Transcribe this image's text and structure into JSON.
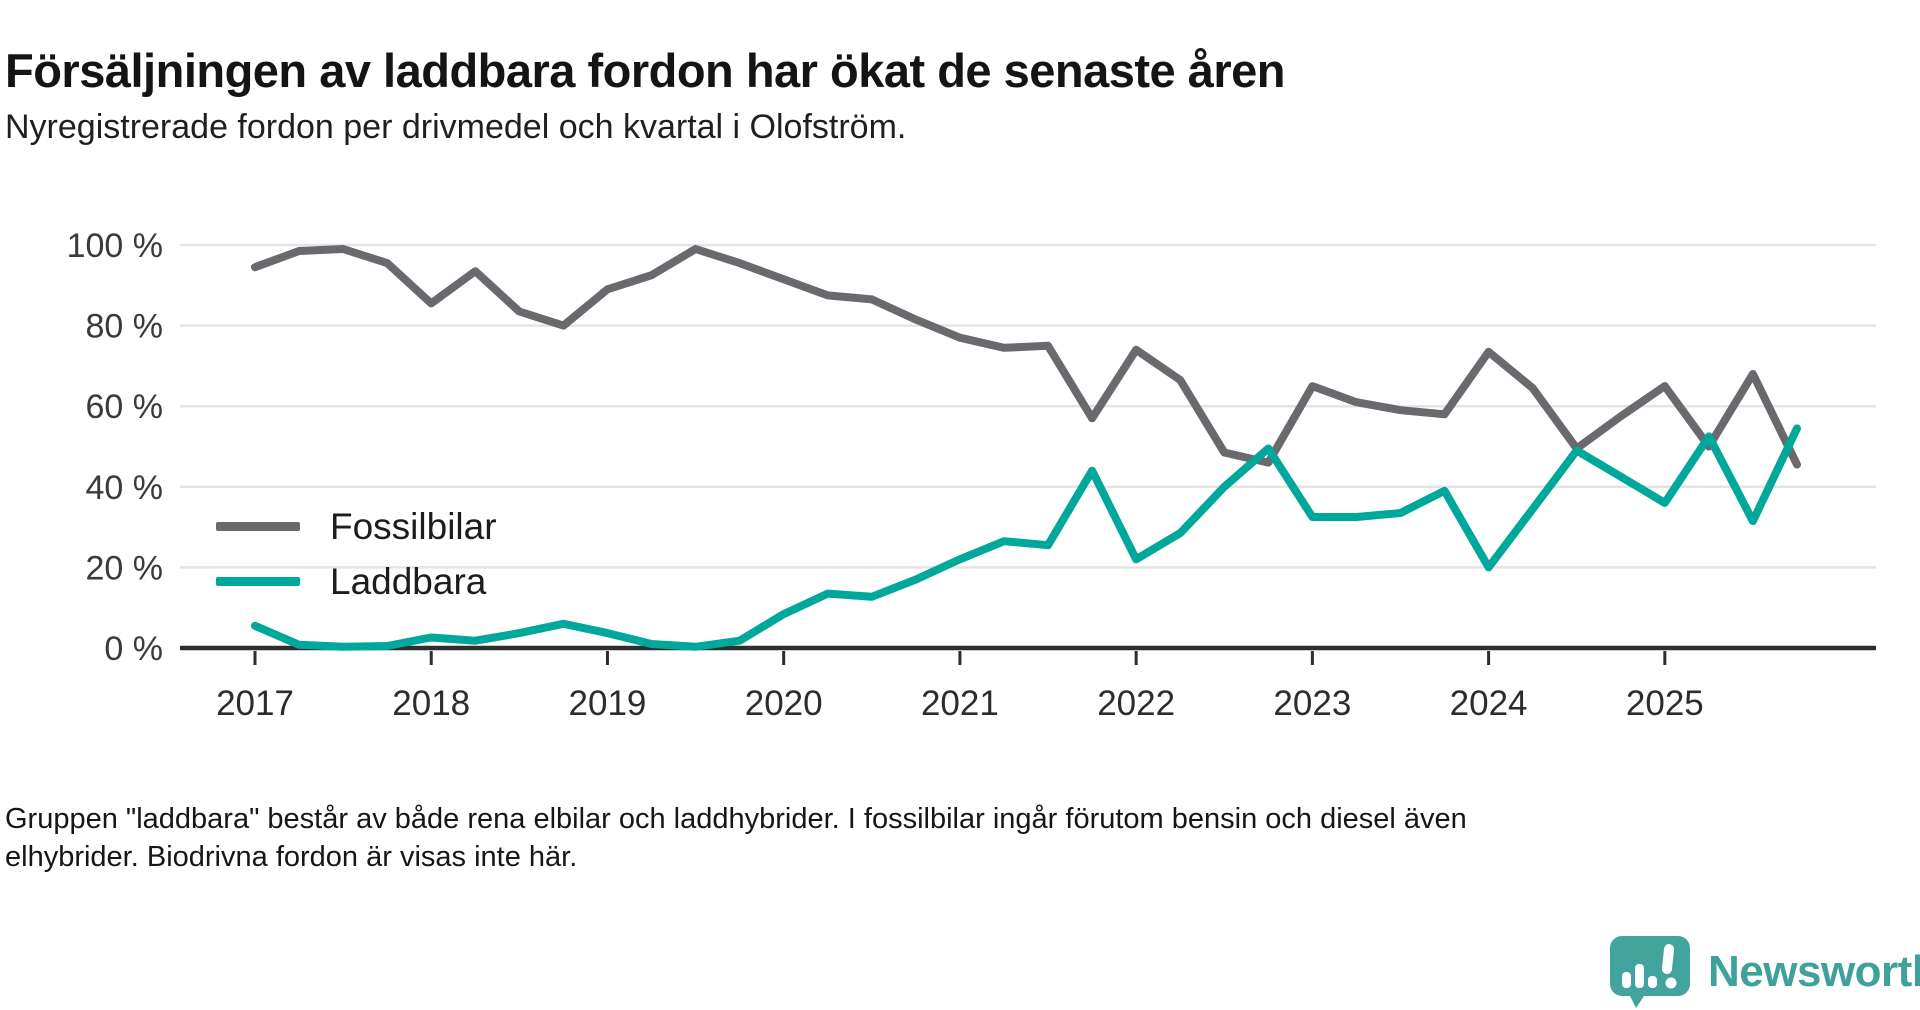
{
  "chart_data": {
    "type": "line",
    "title": "Försäljningen av laddbara fordon har ökat de senaste åren",
    "subtitle": "Nyregistrerade fordon per drivmedel och kvartal i Olofström.",
    "x_tick_labels": [
      "2017",
      "2018",
      "2019",
      "2020",
      "2021",
      "2022",
      "2023",
      "2024",
      "2025"
    ],
    "y_tick_labels": [
      "0 %",
      "20 %",
      "40 %",
      "60 %",
      "80 %",
      "100 %"
    ],
    "ylim": [
      0,
      100
    ],
    "grid": "horizontal",
    "legend_position": "inside-left",
    "categories": [
      "2017 Q1",
      "2017 Q2",
      "2017 Q3",
      "2017 Q4",
      "2018 Q1",
      "2018 Q2",
      "2018 Q3",
      "2018 Q4",
      "2019 Q1",
      "2019 Q2",
      "2019 Q3",
      "2019 Q4",
      "2020 Q1",
      "2020 Q2",
      "2020 Q3",
      "2020 Q4",
      "2021 Q1",
      "2021 Q2",
      "2021 Q3",
      "2021 Q4",
      "2022 Q1",
      "2022 Q2",
      "2022 Q3",
      "2022 Q4",
      "2023 Q1",
      "2023 Q2",
      "2023 Q3",
      "2023 Q4",
      "2024 Q1",
      "2024 Q2",
      "2024 Q3",
      "2024 Q4",
      "2025 Q1",
      "2025 Q2",
      "2025 Q3",
      "2025 Q4"
    ],
    "series": [
      {
        "name": "Fossilbilar",
        "color": "#6a6a6e",
        "values": [
          94.5,
          98.5,
          99,
          95.5,
          85.5,
          93.5,
          83.5,
          80,
          89,
          92.5,
          99,
          95.5,
          91.5,
          87.5,
          86.5,
          81.5,
          77,
          74.5,
          75,
          57,
          74,
          66.5,
          48.5,
          46,
          65,
          61,
          59,
          58,
          73.5,
          64.5,
          49.5,
          57.5,
          65,
          50,
          68,
          45.5
        ]
      },
      {
        "name": "Laddbara",
        "color": "#00a79b",
        "values": [
          5.5,
          0.8,
          0.3,
          0.5,
          2.6,
          1.8,
          3.7,
          6,
          3.7,
          1,
          0.3,
          1.8,
          8.4,
          13.5,
          12.7,
          17,
          22,
          26.5,
          25.5,
          44,
          22,
          28.5,
          40,
          49.5,
          32.5,
          32.5,
          33.5,
          39,
          20,
          34.5,
          49,
          42.5,
          36,
          52.5,
          31.5,
          54.5
        ]
      }
    ]
  },
  "footnote": {
    "line1": "Gruppen \"laddbara\" består av både rena elbilar och laddhybrider. I fossilbilar ingår förutom bensin och diesel även",
    "line2": "elhybrider. Biodrivna fordon är visas inte här."
  },
  "logo": {
    "label": "Newsworthy",
    "brand_color": "#3ea19a",
    "icon": "bar-chart-speech-bubble-icon"
  }
}
